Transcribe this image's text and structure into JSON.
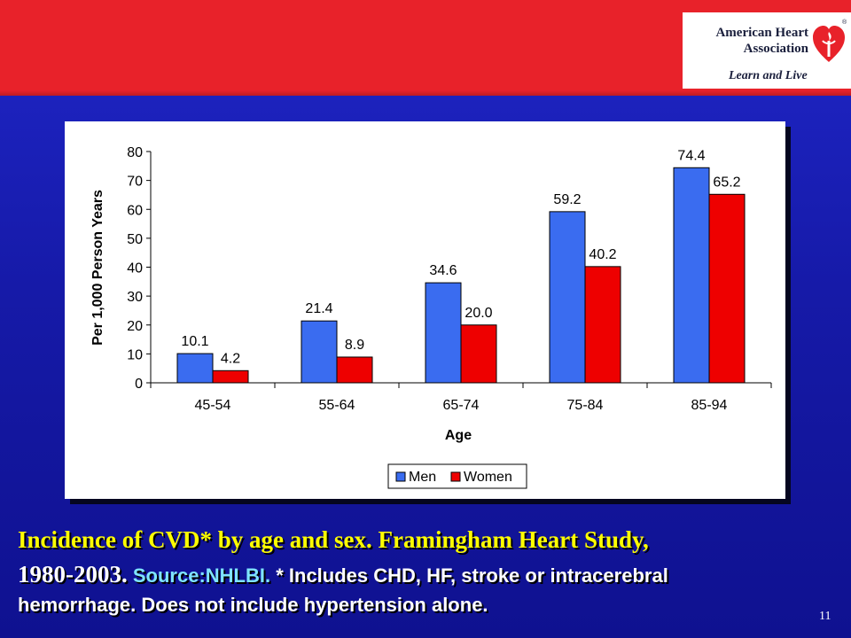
{
  "brand": {
    "org_name_line1": "American Heart",
    "org_name_line2": "Association",
    "tagline": "Learn and Live",
    "registered_mark": "®",
    "colors": {
      "header_red": "#e8222a",
      "background_blue": "#1a1eb8",
      "caption_yellow": "#ffff00"
    }
  },
  "chart_data": {
    "type": "bar",
    "xlabel": "Age",
    "ylabel": "Per 1,000 Person Years",
    "ylim": [
      0,
      80
    ],
    "yticks": [
      0,
      10,
      20,
      30,
      40,
      50,
      60,
      70,
      80
    ],
    "categories": [
      "45-54",
      "55-64",
      "65-74",
      "75-84",
      "85-94"
    ],
    "series": [
      {
        "name": "Men",
        "color": "#3a6cf0",
        "values": [
          10.1,
          21.4,
          34.6,
          59.2,
          74.4
        ],
        "labels": [
          "10.1",
          "21.4",
          "34.6",
          "59.2",
          "74.4"
        ]
      },
      {
        "name": "Women",
        "color": "#ee0000",
        "values": [
          4.2,
          8.9,
          20.0,
          40.2,
          65.2
        ],
        "labels": [
          "4.2",
          "8.9",
          "20.0",
          "40.2",
          "65.2"
        ]
      }
    ],
    "legend_position": "bottom",
    "grid": false
  },
  "caption": {
    "part1": "Incidence of CVD* by age and sex.  Framingham Heart Study,",
    "part2_year": "1980-2003.",
    "part2_source": " Source:NHLBI.",
    "part2_note": " * Includes CHD, HF, stroke or intracerebral",
    "part3": "hemorrhage.  Does not include hypertension alone."
  },
  "page_number": "11"
}
